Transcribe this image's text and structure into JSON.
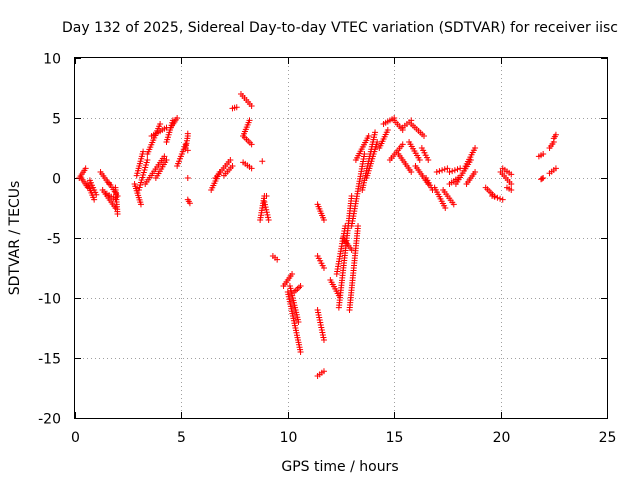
{
  "chart_data": {
    "type": "scatter",
    "title": "Day 132 of 2025, Sidereal Day-to-day VTEC variation (SDTVAR) for receiver iisc",
    "xlabel": "GPS time / hours",
    "ylabel": "SDTVAR / TECUs",
    "xlim": [
      0,
      25
    ],
    "ylim": [
      -20,
      10
    ],
    "xticks": [
      "0",
      "5",
      "10",
      "15",
      "20",
      "25"
    ],
    "yticks": [
      "-20",
      "-15",
      "-10",
      "-5",
      "0",
      "5",
      "10"
    ],
    "grid": true,
    "marker": "plus",
    "marker_color": "#ff0000",
    "segments": [
      {
        "x": [
          0.2,
          0.5
        ],
        "y": [
          0.0,
          0.8
        ]
      },
      {
        "x": [
          0.3,
          0.6
        ],
        "y": [
          0.0,
          -0.8
        ]
      },
      {
        "x": [
          0.6,
          0.9
        ],
        "y": [
          -0.5,
          -1.8
        ]
      },
      {
        "x": [
          0.7,
          1.0
        ],
        "y": [
          -0.2,
          -1.4
        ]
      },
      {
        "x": [
          1.2,
          1.6
        ],
        "y": [
          0.5,
          -0.5
        ]
      },
      {
        "x": [
          1.3,
          1.9
        ],
        "y": [
          -1.0,
          -2.5
        ]
      },
      {
        "x": [
          1.5,
          1.9
        ],
        "y": [
          -1.3,
          -1.8
        ]
      },
      {
        "x": [
          1.6,
          2.0
        ],
        "y": [
          -0.4,
          -1.5
        ]
      },
      {
        "x": [
          1.9,
          2.0
        ],
        "y": [
          -0.8,
          -3.0
        ]
      },
      {
        "x": [
          2.8,
          3.1
        ],
        "y": [
          -0.5,
          -2.2
        ]
      },
      {
        "x": [
          2.9,
          3.2
        ],
        "y": [
          0.2,
          2.2
        ]
      },
      {
        "x": [
          3.0,
          3.4
        ],
        "y": [
          -1.0,
          1.5
        ]
      },
      {
        "x": [
          3.3,
          4.2
        ],
        "y": [
          -0.5,
          1.8
        ]
      },
      {
        "x": [
          3.4,
          4.0
        ],
        "y": [
          2.0,
          4.5
        ]
      },
      {
        "x": [
          3.6,
          4.3
        ],
        "y": [
          3.5,
          4.2
        ]
      },
      {
        "x": [
          3.8,
          4.3
        ],
        "y": [
          0.0,
          1.5
        ]
      },
      {
        "x": [
          4.3,
          4.6
        ],
        "y": [
          3.0,
          4.8
        ]
      },
      {
        "x": [
          4.5,
          4.8
        ],
        "y": [
          4.2,
          5.0
        ]
      },
      {
        "x": [
          4.8,
          5.2
        ],
        "y": [
          1.0,
          2.8
        ]
      },
      {
        "x": [
          5.2,
          5.3
        ],
        "y": [
          2.5,
          3.5
        ]
      },
      {
        "x": [
          5.3,
          5.4
        ],
        "y": [
          -1.8,
          -2.1
        ]
      },
      {
        "x": [
          6.4,
          6.8
        ],
        "y": [
          -1.0,
          0.5
        ]
      },
      {
        "x": [
          6.6,
          7.3
        ],
        "y": [
          0.0,
          1.5
        ]
      },
      {
        "x": [
          7.0,
          7.4
        ],
        "y": [
          0.2,
          1.0
        ]
      },
      {
        "x": [
          7.4,
          7.6
        ],
        "y": [
          5.8,
          5.9
        ]
      },
      {
        "x": [
          7.8,
          8.3
        ],
        "y": [
          7.0,
          6.0
        ]
      },
      {
        "x": [
          7.9,
          8.2
        ],
        "y": [
          3.5,
          4.8
        ]
      },
      {
        "x": [
          7.9,
          8.3
        ],
        "y": [
          3.5,
          2.8
        ]
      },
      {
        "x": [
          7.9,
          8.3
        ],
        "y": [
          1.3,
          0.8
        ]
      },
      {
        "x": [
          8.7,
          8.9
        ],
        "y": [
          -3.5,
          -1.5
        ]
      },
      {
        "x": [
          8.9,
          9.1
        ],
        "y": [
          -2.0,
          -3.5
        ]
      },
      {
        "x": [
          9.3,
          9.5
        ],
        "y": [
          -6.5,
          -6.8
        ]
      },
      {
        "x": [
          9.8,
          10.2
        ],
        "y": [
          -9.0,
          -8.0
        ]
      },
      {
        "x": [
          10.0,
          10.6
        ],
        "y": [
          -9.5,
          -14.5
        ]
      },
      {
        "x": [
          10.1,
          10.5
        ],
        "y": [
          -9.0,
          -12.0
        ]
      },
      {
        "x": [
          10.3,
          10.6
        ],
        "y": [
          -9.5,
          -9.0
        ]
      },
      {
        "x": [
          11.4,
          11.7
        ],
        "y": [
          -6.5,
          -7.5
        ]
      },
      {
        "x": [
          11.4,
          11.7
        ],
        "y": [
          -2.2,
          -3.5
        ]
      },
      {
        "x": [
          11.4,
          11.7
        ],
        "y": [
          -11.0,
          -13.5
        ]
      },
      {
        "x": [
          11.4,
          11.7
        ],
        "y": [
          -16.5,
          -16.1
        ]
      },
      {
        "x": [
          12.0,
          12.4
        ],
        "y": [
          -8.5,
          -9.8
        ]
      },
      {
        "x": [
          12.3,
          12.7
        ],
        "y": [
          -8.0,
          -4.0
        ]
      },
      {
        "x": [
          12.4,
          13.0
        ],
        "y": [
          -10.8,
          -1.5
        ]
      },
      {
        "x": [
          12.6,
          13.0
        ],
        "y": [
          -5.0,
          -6.0
        ]
      },
      {
        "x": [
          12.9,
          13.3
        ],
        "y": [
          -11.0,
          -4.0
        ]
      },
      {
        "x": [
          13.0,
          13.6
        ],
        "y": [
          -4.0,
          2.0
        ]
      },
      {
        "x": [
          13.2,
          13.8
        ],
        "y": [
          1.5,
          3.5
        ]
      },
      {
        "x": [
          13.5,
          14.1
        ],
        "y": [
          -1.0,
          3.8
        ]
      },
      {
        "x": [
          13.7,
          14.2
        ],
        "y": [
          0.0,
          3.0
        ]
      },
      {
        "x": [
          14.3,
          14.7
        ],
        "y": [
          2.5,
          4.0
        ]
      },
      {
        "x": [
          14.5,
          15.0
        ],
        "y": [
          4.5,
          5.0
        ]
      },
      {
        "x": [
          14.8,
          15.4
        ],
        "y": [
          1.5,
          2.8
        ]
      },
      {
        "x": [
          15.0,
          15.4
        ],
        "y": [
          4.8,
          4.0
        ]
      },
      {
        "x": [
          15.2,
          15.8
        ],
        "y": [
          2.0,
          0.5
        ]
      },
      {
        "x": [
          15.4,
          15.8
        ],
        "y": [
          4.2,
          4.8
        ]
      },
      {
        "x": [
          15.7,
          16.2
        ],
        "y": [
          3.0,
          1.5
        ]
      },
      {
        "x": [
          15.8,
          16.4
        ],
        "y": [
          4.5,
          3.5
        ]
      },
      {
        "x": [
          16.0,
          16.6
        ],
        "y": [
          1.0,
          -0.5
        ]
      },
      {
        "x": [
          16.3,
          16.6
        ],
        "y": [
          2.5,
          1.5
        ]
      },
      {
        "x": [
          16.5,
          16.8
        ],
        "y": [
          0.0,
          -1.0
        ]
      },
      {
        "x": [
          16.9,
          17.4
        ],
        "y": [
          -0.8,
          -2.5
        ]
      },
      {
        "x": [
          17.0,
          17.5
        ],
        "y": [
          0.5,
          0.8
        ]
      },
      {
        "x": [
          17.3,
          17.8
        ],
        "y": [
          -1.0,
          -2.2
        ]
      },
      {
        "x": [
          17.6,
          18.0
        ],
        "y": [
          -0.5,
          0.0
        ]
      },
      {
        "x": [
          17.6,
          18.1
        ],
        "y": [
          0.5,
          0.8
        ]
      },
      {
        "x": [
          17.9,
          18.6
        ],
        "y": [
          -0.5,
          1.5
        ]
      },
      {
        "x": [
          18.3,
          18.8
        ],
        "y": [
          0.8,
          2.5
        ]
      },
      {
        "x": [
          18.4,
          18.8
        ],
        "y": [
          -0.5,
          0.5
        ]
      },
      {
        "x": [
          19.3,
          19.7
        ],
        "y": [
          -0.8,
          -1.5
        ]
      },
      {
        "x": [
          19.6,
          20.1
        ],
        "y": [
          -1.5,
          -1.8
        ]
      },
      {
        "x": [
          20.0,
          20.5
        ],
        "y": [
          0.5,
          -0.5
        ]
      },
      {
        "x": [
          20.1,
          20.5
        ],
        "y": [
          0.8,
          0.3
        ]
      },
      {
        "x": [
          20.3,
          20.5
        ],
        "y": [
          -0.8,
          -1.0
        ]
      },
      {
        "x": [
          21.8,
          22.0
        ],
        "y": [
          1.8,
          2.0
        ]
      },
      {
        "x": [
          21.9,
          22.0
        ],
        "y": [
          -0.1,
          0.0
        ]
      },
      {
        "x": [
          22.3,
          22.6
        ],
        "y": [
          0.4,
          0.8
        ]
      },
      {
        "x": [
          22.3,
          22.5
        ],
        "y": [
          2.5,
          3.0
        ]
      },
      {
        "x": [
          22.5,
          22.6
        ],
        "y": [
          3.3,
          3.6
        ]
      }
    ],
    "points": [
      {
        "x": 5.3,
        "y": 0.0
      },
      {
        "x": 5.3,
        "y": 2.3
      },
      {
        "x": 5.3,
        "y": 3.7
      },
      {
        "x": 8.8,
        "y": 1.4
      },
      {
        "x": 9.0,
        "y": -1.5
      }
    ]
  }
}
